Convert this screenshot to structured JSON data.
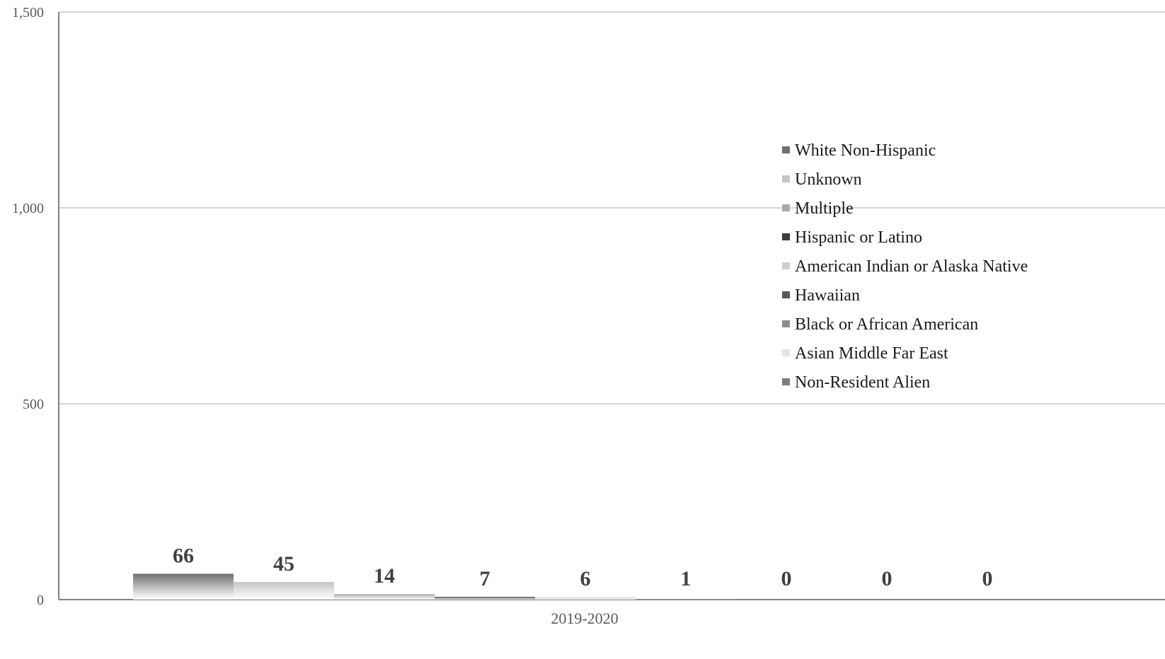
{
  "chart_data": {
    "type": "bar",
    "categories": [
      "2019-2020"
    ],
    "series": [
      {
        "name": "White Non-Hispanic",
        "values": [
          66
        ],
        "color": "#6e6e6e"
      },
      {
        "name": "Unknown",
        "values": [
          45
        ],
        "color": "#c4c4c4"
      },
      {
        "name": "Multiple",
        "values": [
          14
        ],
        "color": "#a9a9a9"
      },
      {
        "name": "Hispanic or Latino",
        "values": [
          7
        ],
        "color": "#3d3d3d"
      },
      {
        "name": "American Indian or Alaska Native",
        "values": [
          6
        ],
        "color": "#cfcfcf"
      },
      {
        "name": "Hawaiian",
        "values": [
          1
        ],
        "color": "#5a5a5a"
      },
      {
        "name": "Black or African American",
        "values": [
          0
        ],
        "color": "#8e8e8e"
      },
      {
        "name": "Asian Middle Far East",
        "values": [
          0
        ],
        "color": "#e4e4e4"
      },
      {
        "name": "Non-Resident Alien",
        "values": [
          0
        ],
        "color": "#7c7c7c"
      }
    ],
    "data_labels": [
      "66",
      "45",
      "14",
      "7",
      "6",
      "1",
      "0",
      "0",
      "0"
    ],
    "y_ticks": [
      0,
      500,
      1000,
      1500
    ],
    "y_tick_labels": [
      "0",
      "500",
      "1,000",
      "1,500"
    ],
    "ylim": [
      0,
      1500
    ],
    "grid": true,
    "legend_position": "right, inside plot area",
    "title": "",
    "xlabel": "",
    "ylabel": ""
  }
}
